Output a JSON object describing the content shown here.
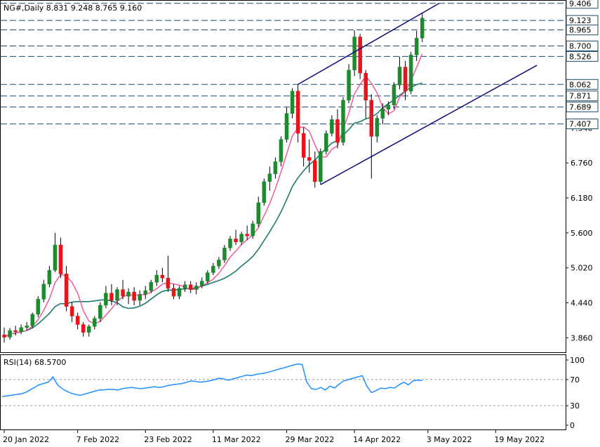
{
  "header": {
    "symbol_line": "NG#,Daily  8.831 9.248 8.765 9.160",
    "rsi_label": "RSI(14) 68.5700"
  },
  "chart_data": [
    {
      "type": "candlestick",
      "symbol": "NG#",
      "timeframe": "Daily",
      "ohlc_last": {
        "open": 8.831,
        "high": 9.248,
        "low": 8.765,
        "close": 9.16
      },
      "ylim": [
        3.62,
        9.45
      ],
      "y_ticks": [
        "3.860",
        "4.440",
        "5.020",
        "5.600",
        "6.180",
        "6.760",
        "7.340",
        "8.062",
        "8.526",
        "8.700",
        "8.965",
        "9.123",
        "9.406"
      ],
      "x_ticks": [
        {
          "label": "20 Jan 2022",
          "index": 0
        },
        {
          "label": "7 Feb 2022",
          "index": 13
        },
        {
          "label": "23 Feb 2022",
          "index": 25
        },
        {
          "label": "11 Mar 2022",
          "index": 37
        },
        {
          "label": "29 Mar 2022",
          "index": 50
        },
        {
          "label": "14 Apr 2022",
          "index": 62
        },
        {
          "label": "3 May 2022",
          "index": 75
        },
        {
          "label": "19 May 2022",
          "index": 87
        }
      ],
      "price_levels": [
        {
          "value": 9.406,
          "label": "9.406"
        },
        {
          "value": 9.123,
          "label": "9.123"
        },
        {
          "value": 8.965,
          "label": "8.965"
        },
        {
          "value": 8.7,
          "label": "8.700"
        },
        {
          "value": 8.526,
          "label": "8.526"
        },
        {
          "value": 8.062,
          "label": "8.062"
        },
        {
          "value": 7.871,
          "label": "7.871"
        },
        {
          "value": 7.689,
          "label": "7.689"
        },
        {
          "value": 7.407,
          "label": "7.407"
        }
      ],
      "candles": [
        [
          3.91,
          4.03,
          3.78,
          3.87
        ],
        [
          3.87,
          4.02,
          3.83,
          3.98
        ],
        [
          3.98,
          4.06,
          3.9,
          3.96
        ],
        [
          3.96,
          4.08,
          3.92,
          4.03
        ],
        [
          4.03,
          4.12,
          3.98,
          4.06
        ],
        [
          4.06,
          4.28,
          4.02,
          4.25
        ],
        [
          4.25,
          4.55,
          4.2,
          4.5
        ],
        [
          4.5,
          4.82,
          4.45,
          4.75
        ],
        [
          4.75,
          5.05,
          4.7,
          4.98
        ],
        [
          4.98,
          5.6,
          4.95,
          5.4
        ],
        [
          5.4,
          5.52,
          4.85,
          4.92
        ],
        [
          4.92,
          5.05,
          4.3,
          4.38
        ],
        [
          4.38,
          4.45,
          4.12,
          4.22
        ],
        [
          4.22,
          4.28,
          4.0,
          4.08
        ],
        [
          4.08,
          4.12,
          3.88,
          3.95
        ],
        [
          3.95,
          4.08,
          3.88,
          4.05
        ],
        [
          4.05,
          4.22,
          4.0,
          4.18
        ],
        [
          4.18,
          4.45,
          4.12,
          4.4
        ],
        [
          4.4,
          4.72,
          4.35,
          4.6
        ],
        [
          4.6,
          4.75,
          4.4,
          4.48
        ],
        [
          4.48,
          4.7,
          4.4,
          4.66
        ],
        [
          4.66,
          4.82,
          4.5,
          4.55
        ],
        [
          4.55,
          4.68,
          4.42,
          4.62
        ],
        [
          4.62,
          4.7,
          4.4,
          4.48
        ],
        [
          4.48,
          4.65,
          4.4,
          4.58
        ],
        [
          4.58,
          4.72,
          4.5,
          4.64
        ],
        [
          4.64,
          4.82,
          4.6,
          4.78
        ],
        [
          4.78,
          4.98,
          4.72,
          4.9
        ],
        [
          4.9,
          5.02,
          4.78,
          4.85
        ],
        [
          4.85,
          5.22,
          4.62,
          4.68
        ],
        [
          4.68,
          4.75,
          4.5,
          4.55
        ],
        [
          4.55,
          4.72,
          4.5,
          4.68
        ],
        [
          4.68,
          4.8,
          4.62,
          4.74
        ],
        [
          4.74,
          4.8,
          4.6,
          4.66
        ],
        [
          4.66,
          4.78,
          4.58,
          4.72
        ],
        [
          4.72,
          4.86,
          4.68,
          4.8
        ],
        [
          4.8,
          4.98,
          4.76,
          4.94
        ],
        [
          4.94,
          5.1,
          4.9,
          5.05
        ],
        [
          5.05,
          5.2,
          5.0,
          5.15
        ],
        [
          5.15,
          5.4,
          5.1,
          5.35
        ],
        [
          5.35,
          5.55,
          5.3,
          5.5
        ],
        [
          5.5,
          5.65,
          5.4,
          5.45
        ],
        [
          5.45,
          5.62,
          5.4,
          5.58
        ],
        [
          5.58,
          5.72,
          5.48,
          5.55
        ],
        [
          5.55,
          5.8,
          5.5,
          5.75
        ],
        [
          5.75,
          6.2,
          5.7,
          6.1
        ],
        [
          6.1,
          6.5,
          6.05,
          6.45
        ],
        [
          6.45,
          6.7,
          6.3,
          6.58
        ],
        [
          6.58,
          6.85,
          6.5,
          6.78
        ],
        [
          6.78,
          7.2,
          6.7,
          7.15
        ],
        [
          7.15,
          7.68,
          7.1,
          7.58
        ],
        [
          7.58,
          8.0,
          7.5,
          7.95
        ],
        [
          7.95,
          8.06,
          7.1,
          7.25
        ],
        [
          7.25,
          7.35,
          6.7,
          6.85
        ],
        [
          6.85,
          7.15,
          6.6,
          6.8
        ],
        [
          6.8,
          6.95,
          6.35,
          6.45
        ],
        [
          6.45,
          7.0,
          6.4,
          6.95
        ],
        [
          6.95,
          7.3,
          6.9,
          7.25
        ],
        [
          7.25,
          7.55,
          7.2,
          7.48
        ],
        [
          7.48,
          7.65,
          7.0,
          7.1
        ],
        [
          7.1,
          7.85,
          7.05,
          7.8
        ],
        [
          7.8,
          8.4,
          7.75,
          8.3
        ],
        [
          8.3,
          8.96,
          8.2,
          8.85
        ],
        [
          8.85,
          8.9,
          8.15,
          8.25
        ],
        [
          8.25,
          8.3,
          7.5,
          7.8
        ],
        [
          7.8,
          7.9,
          6.5,
          7.2
        ],
        [
          7.2,
          7.55,
          7.1,
          7.5
        ],
        [
          7.5,
          7.75,
          7.4,
          7.65
        ],
        [
          7.65,
          7.78,
          7.55,
          7.72
        ],
        [
          7.72,
          8.1,
          7.65,
          8.05
        ],
        [
          8.05,
          8.52,
          7.98,
          8.35
        ],
        [
          8.35,
          8.45,
          7.8,
          7.95
        ],
        [
          7.95,
          8.6,
          7.9,
          8.55
        ],
        [
          8.55,
          8.95,
          8.45,
          8.83
        ],
        [
          8.831,
          9.248,
          8.765,
          9.16
        ]
      ],
      "ma_fast": [],
      "ma_slow": [],
      "channel": {
        "upper": [
          {
            "index": 52,
            "value": 8.062
          },
          {
            "index": 77,
            "value": 9.406
          }
        ],
        "lower": [
          {
            "index": 56,
            "value": 6.4
          },
          {
            "index": 86,
            "value": 7.95
          }
        ]
      }
    },
    {
      "type": "line",
      "name": "RSI(14)",
      "value": 68.57,
      "ylim": [
        0,
        100
      ],
      "y_ticks": [
        "100",
        "70",
        "30",
        "0"
      ],
      "levels": [
        70,
        30
      ],
      "values": [
        44,
        45,
        46,
        47,
        48,
        50,
        54,
        58,
        62,
        64,
        66,
        74,
        62,
        56,
        52,
        49,
        47,
        46,
        48,
        50,
        52,
        54,
        54,
        55,
        55,
        54,
        56,
        57,
        58,
        57,
        56,
        57,
        58,
        59,
        58,
        59,
        61,
        62,
        63,
        64,
        66,
        68,
        67,
        66,
        67,
        68,
        70,
        72,
        71,
        69,
        71,
        73,
        75,
        77,
        76,
        78,
        79,
        80,
        82,
        84,
        86,
        88,
        90,
        92,
        94,
        93,
        66,
        56,
        55,
        58,
        54,
        60,
        57,
        63,
        68,
        70,
        72,
        74,
        76,
        60,
        50,
        53,
        57,
        56,
        58,
        57,
        62,
        66,
        62,
        68,
        69,
        68.57
      ]
    }
  ]
}
